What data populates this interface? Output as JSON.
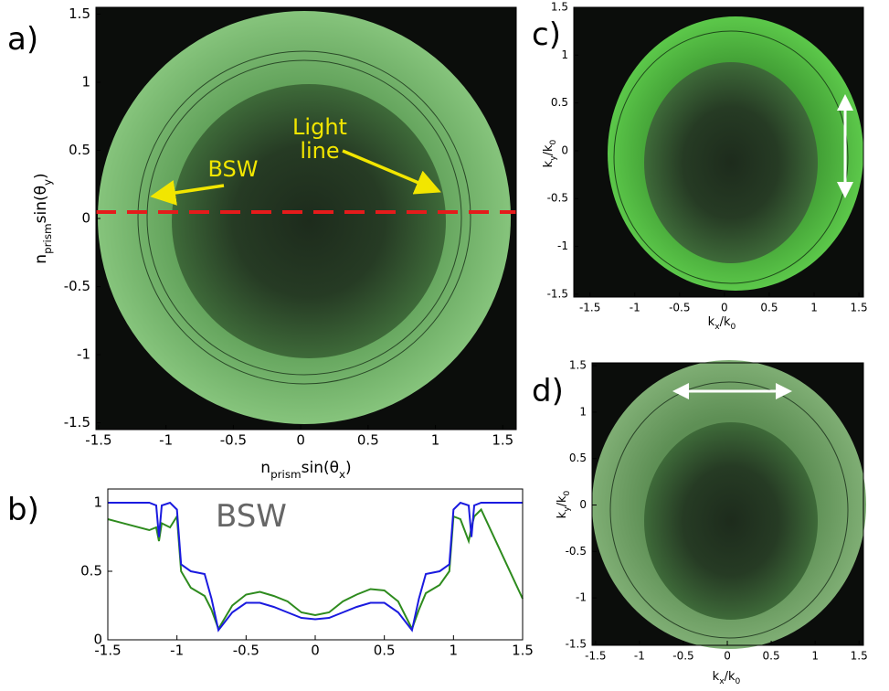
{
  "chart_data": [
    {
      "type": "image",
      "panel_label": "a)",
      "xlabel": [
        "n",
        "prism",
        "sin(θ",
        "x",
        ")"
      ],
      "ylabel": [
        "n",
        "prism",
        "sin(θ",
        "y",
        ")"
      ],
      "xlim": [
        -1.52,
        1.6
      ],
      "ylim": [
        -1.55,
        1.55
      ],
      "xticks": [
        -1.5,
        -1,
        -0.5,
        0,
        0.5,
        1,
        1.5
      ],
      "yticks": [
        -1.5,
        -1,
        -0.5,
        0,
        0.5,
        1,
        1.5
      ],
      "annotations": [
        "BSW",
        "Light line"
      ]
    },
    {
      "type": "line",
      "panel_label": "b)",
      "xlim": [
        -1.5,
        1.5
      ],
      "ylim": [
        0,
        1.1
      ],
      "xticks": [
        -1.5,
        -1,
        -0.5,
        0,
        0.5,
        1,
        1.5
      ],
      "yticks": [
        0,
        0.5,
        1
      ],
      "x": [
        -1.5,
        -1.2,
        -1.15,
        -1.13,
        -1.11,
        -1.05,
        -1.0,
        -0.97,
        -0.9,
        -0.8,
        -0.75,
        -0.7,
        -0.6,
        -0.5,
        -0.4,
        -0.3,
        -0.2,
        -0.1,
        0,
        0.1,
        0.2,
        0.3,
        0.4,
        0.5,
        0.6,
        0.7,
        0.75,
        0.8,
        0.9,
        0.97,
        1.0,
        1.05,
        1.11,
        1.13,
        1.15,
        1.2,
        1.5
      ],
      "series": [
        {
          "color": "#2e8b1e",
          "values": [
            0.88,
            0.8,
            0.82,
            0.72,
            0.85,
            0.82,
            0.9,
            0.5,
            0.38,
            0.32,
            0.22,
            0.08,
            0.25,
            0.33,
            0.35,
            0.32,
            0.28,
            0.2,
            0.18,
            0.2,
            0.28,
            0.33,
            0.37,
            0.36,
            0.28,
            0.08,
            0.22,
            0.34,
            0.4,
            0.5,
            0.9,
            0.88,
            0.72,
            0.82,
            0.9,
            0.95,
            0.3
          ]
        },
        {
          "color": "#1a1adf",
          "values": [
            1,
            1,
            0.98,
            0.75,
            0.98,
            1,
            0.95,
            0.55,
            0.5,
            0.48,
            0.3,
            0.07,
            0.2,
            0.27,
            0.27,
            0.24,
            0.2,
            0.16,
            0.15,
            0.16,
            0.2,
            0.24,
            0.27,
            0.27,
            0.2,
            0.07,
            0.3,
            0.48,
            0.5,
            0.55,
            0.95,
            1,
            0.98,
            0.75,
            0.98,
            1,
            1
          ]
        }
      ],
      "annotations": [
        "BSW"
      ]
    },
    {
      "type": "image",
      "panel_label": "c)",
      "xlabel": [
        "k",
        "x",
        "/k",
        "0"
      ],
      "ylabel": [
        "k",
        "y",
        "/k",
        "0"
      ],
      "xlim": [
        -1.68,
        1.55
      ],
      "ylim": [
        -1.53,
        1.5
      ],
      "xticks": [
        -1.5,
        -1,
        -0.5,
        0,
        0.5,
        1,
        1.5
      ],
      "yticks": [
        -1.5,
        -1,
        -0.5,
        0,
        0.5,
        1,
        1.5
      ]
    },
    {
      "type": "image",
      "panel_label": "d)",
      "xlabel": [
        "k",
        "x",
        "/k",
        "0"
      ],
      "ylabel": [
        "k",
        "y",
        "/k",
        "0"
      ],
      "xlim": [
        -1.54,
        1.55
      ],
      "ylim": [
        -1.51,
        1.53
      ],
      "xticks": [
        -1.5,
        -1,
        -0.5,
        0,
        0.5,
        1,
        1.5
      ],
      "yticks": [
        -1.5,
        -1,
        -0.5,
        0,
        0.5,
        1,
        1.5
      ]
    }
  ]
}
